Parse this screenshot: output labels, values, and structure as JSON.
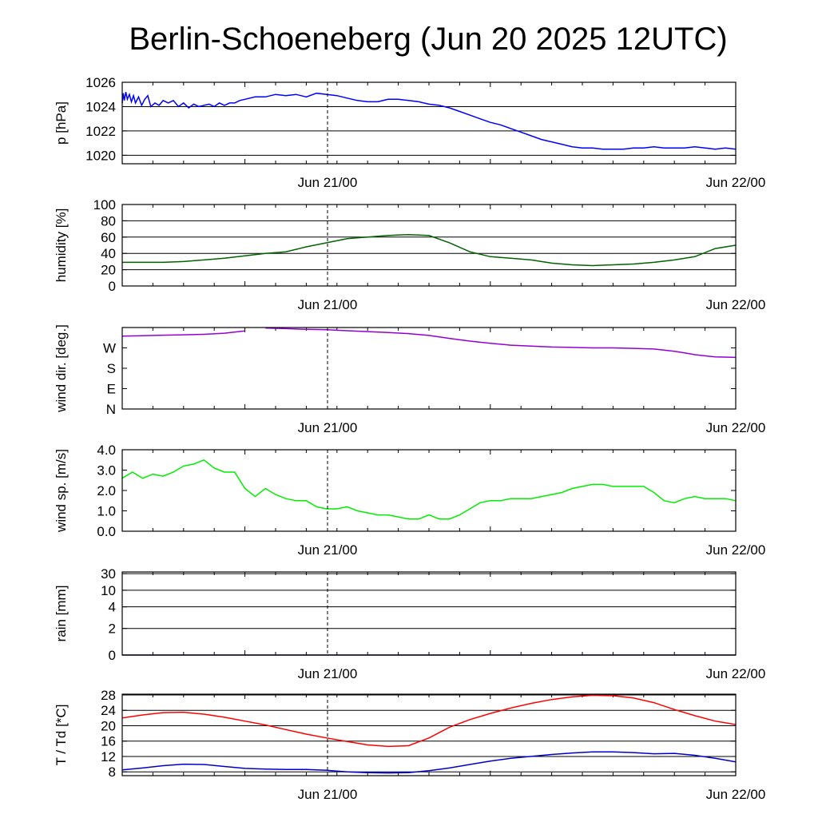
{
  "title": "Berlin-Schoeneberg (Jun 20 2025 12UTC)",
  "chart_data": [
    {
      "type": "line",
      "ylabel": "p [hPa]",
      "ylim": [
        1019.3,
        1026.0
      ],
      "yticks": [
        1020,
        1022,
        1024,
        1026
      ],
      "ytick_labels": [
        "1020",
        "1022",
        "1024",
        "1026"
      ],
      "grid": true,
      "xticks": [
        "Jun 21/00",
        "Jun 22/00"
      ],
      "series": [
        {
          "color": "#0000ff",
          "x": [
            0,
            0.1,
            0.2,
            0.35,
            0.5,
            0.7,
            0.9,
            1.1,
            1.3,
            1.6,
            1.9,
            2.2,
            2.5,
            2.8,
            3.2,
            3.6,
            4.0,
            4.5,
            5,
            5.5,
            6,
            6.5,
            7,
            7.5,
            8,
            8.5,
            9,
            9.5,
            10,
            10.5,
            11,
            11.5,
            12,
            13,
            14,
            15,
            16,
            17,
            18,
            19,
            20,
            21,
            22,
            23,
            24,
            25,
            26,
            27,
            28,
            29,
            30,
            31,
            32,
            33,
            34,
            35,
            36,
            37,
            38,
            39,
            40,
            41,
            42,
            43,
            44,
            45,
            46,
            47,
            48,
            49,
            50,
            51,
            52,
            53,
            54,
            55,
            56,
            57,
            58,
            59,
            60
          ],
          "y": [
            1024.3,
            1025.1,
            1024.5,
            1025.2,
            1024.6,
            1025.0,
            1024.4,
            1024.9,
            1024.3,
            1024.8,
            1024.1,
            1024.6,
            1024.9,
            1024.0,
            1024.3,
            1024.1,
            1024.5,
            1024.3,
            1024.5,
            1024.0,
            1024.3,
            1023.9,
            1024.2,
            1024.0,
            1024.1,
            1024.2,
            1024.0,
            1024.3,
            1024.1,
            1024.3,
            1024.3,
            1024.5,
            1024.6,
            1024.8,
            1024.8,
            1025.0,
            1024.9,
            1025.0,
            1024.8,
            1025.1,
            1025.0,
            1024.9,
            1024.7,
            1024.5,
            1024.4,
            1024.4,
            1024.6,
            1024.6,
            1024.5,
            1024.4,
            1024.2,
            1024.1,
            1023.9,
            1023.6,
            1023.3,
            1023.0,
            1022.7,
            1022.5,
            1022.2,
            1021.9,
            1021.6,
            1021.3,
            1021.1,
            1020.9,
            1020.7,
            1020.6,
            1020.6,
            1020.5,
            1020.5,
            1020.5,
            1020.6,
            1020.6,
            1020.7,
            1020.6,
            1020.6,
            1020.6,
            1020.7,
            1020.6,
            1020.5,
            1020.6,
            1020.5
          ]
        }
      ]
    },
    {
      "type": "line",
      "ylabel": "humidity [%]",
      "ylim": [
        0,
        100
      ],
      "yticks": [
        0,
        20,
        40,
        60,
        80,
        100
      ],
      "ytick_labels": [
        "0",
        "20",
        "40",
        "60",
        "80",
        "100"
      ],
      "grid": true,
      "xticks": [
        "Jun 21/00",
        "Jun 22/00"
      ],
      "series": [
        {
          "color": "#006400",
          "x": [
            0,
            2,
            4,
            6,
            8,
            10,
            12,
            14,
            16,
            18,
            20,
            22,
            24,
            26,
            28,
            30,
            32,
            34,
            36,
            38,
            40,
            42,
            44,
            46,
            48,
            50,
            52,
            54,
            56,
            58,
            60
          ],
          "y": [
            29,
            29,
            29,
            30,
            32,
            34,
            37,
            40,
            42,
            48,
            53,
            58,
            60,
            62,
            63,
            62,
            53,
            42,
            36,
            34,
            32,
            28,
            26,
            25,
            26,
            27,
            29,
            32,
            36,
            46,
            50
          ]
        }
      ]
    },
    {
      "type": "line",
      "ylabel": "wind dir. [deg.]",
      "ylim": [
        0,
        360
      ],
      "yticks": [
        0,
        90,
        180,
        270
      ],
      "ytick_labels": [
        "N",
        "E",
        "S",
        "W"
      ],
      "grid": false,
      "xticks": [
        "Jun 21/00",
        "Jun 22/00"
      ],
      "series": [
        {
          "color": "#9400d3",
          "x": [
            0,
            2,
            4,
            6,
            8,
            10,
            12,
            11.5,
            14,
            16,
            18,
            20,
            22,
            24,
            26,
            28,
            30,
            32,
            34,
            36,
            38,
            40,
            42,
            44,
            46,
            48,
            50,
            52,
            54,
            55,
            56,
            58,
            60
          ],
          "y": [
            322,
            324,
            326,
            328,
            330,
            335,
            345,
            2,
            358,
            355,
            352,
            350,
            346,
            342,
            338,
            333,
            325,
            312,
            300,
            290,
            282,
            278,
            274,
            272,
            270,
            270,
            268,
            265,
            255,
            248,
            240,
            230,
            228
          ]
        }
      ]
    },
    {
      "type": "line",
      "ylabel": "wind sp. [m/s]",
      "ylim": [
        0,
        4
      ],
      "yticks": [
        0,
        1,
        2,
        3,
        4
      ],
      "ytick_labels": [
        "0.0",
        "1.0",
        "2.0",
        "3.0",
        "4.0"
      ],
      "grid": false,
      "xticks": [
        "Jun 21/00",
        "Jun 22/00"
      ],
      "series": [
        {
          "color": "#00ee00",
          "x": [
            0,
            1,
            2,
            3,
            4,
            5,
            6,
            7,
            8,
            9,
            10,
            11,
            12,
            13,
            14,
            15,
            16,
            17,
            18,
            19,
            20,
            21,
            22,
            23,
            24,
            25,
            26,
            27,
            28,
            29,
            30,
            31,
            32,
            33,
            34,
            35,
            36,
            37,
            38,
            39,
            40,
            41,
            42,
            43,
            44,
            45,
            46,
            47,
            48,
            49,
            50,
            51,
            52,
            53,
            54,
            55,
            56,
            57,
            58,
            59,
            60
          ],
          "y": [
            2.6,
            2.9,
            2.6,
            2.8,
            2.7,
            2.9,
            3.2,
            3.3,
            3.5,
            3.1,
            2.9,
            2.9,
            2.1,
            1.7,
            2.1,
            1.8,
            1.6,
            1.5,
            1.5,
            1.2,
            1.1,
            1.1,
            1.2,
            1.0,
            0.9,
            0.8,
            0.8,
            0.7,
            0.6,
            0.6,
            0.8,
            0.6,
            0.6,
            0.8,
            1.1,
            1.4,
            1.5,
            1.5,
            1.6,
            1.6,
            1.6,
            1.7,
            1.8,
            1.9,
            2.1,
            2.2,
            2.3,
            2.3,
            2.2,
            2.2,
            2.2,
            2.2,
            1.9,
            1.5,
            1.4,
            1.6,
            1.7,
            1.6,
            1.6,
            1.6,
            1.5
          ]
        }
      ]
    },
    {
      "type": "line",
      "ylabel": "rain [mm]",
      "yticks": [
        0,
        2,
        4,
        10,
        30
      ],
      "ytick_labels": [
        "0",
        "2",
        "4",
        "10",
        "30"
      ],
      "grid": true,
      "xticks": [
        "Jun 21/00",
        "Jun 22/00"
      ],
      "series": [
        {
          "color": "#000080",
          "x": [
            0,
            60
          ],
          "y": [
            0,
            0
          ]
        }
      ]
    },
    {
      "type": "line",
      "ylabel": "T / Td [*C]",
      "ylim": [
        7,
        28.2
      ],
      "yticks": [
        8,
        12,
        16,
        20,
        24,
        28
      ],
      "ytick_labels": [
        "8",
        "12",
        "16",
        "20",
        "24",
        "28"
      ],
      "grid": true,
      "xticks": [
        "Jun 21/00",
        "Jun 22/00"
      ],
      "series": [
        {
          "color": "#ff0000",
          "x": [
            0,
            2,
            4,
            6,
            8,
            10,
            12,
            14,
            16,
            18,
            20,
            22,
            24,
            26,
            28,
            30,
            32,
            34,
            36,
            38,
            40,
            42,
            44,
            46,
            48,
            50,
            52,
            54,
            56,
            58,
            60
          ],
          "y": [
            22,
            22.8,
            23.4,
            23.5,
            23.0,
            22.2,
            21.2,
            20.2,
            19.0,
            17.8,
            16.8,
            15.9,
            15.0,
            14.6,
            14.8,
            16.8,
            19.6,
            21.6,
            23.2,
            24.6,
            25.8,
            26.8,
            27.5,
            27.9,
            27.8,
            27.2,
            26.0,
            24.2,
            22.6,
            21.2,
            20.3
          ]
        },
        {
          "color": "#0000cd",
          "x": [
            0,
            2,
            4,
            6,
            8,
            10,
            12,
            14,
            16,
            18,
            20,
            22,
            24,
            26,
            28,
            30,
            32,
            34,
            36,
            38,
            40,
            42,
            44,
            46,
            48,
            50,
            52,
            54,
            56,
            58,
            60
          ],
          "y": [
            8.5,
            9,
            9.6,
            10.0,
            9.9,
            9.4,
            8.9,
            8.7,
            8.6,
            8.6,
            8.4,
            8.0,
            7.8,
            7.7,
            7.8,
            8.3,
            9.0,
            9.9,
            10.8,
            11.5,
            12.0,
            12.5,
            12.9,
            13.2,
            13.2,
            13.0,
            12.7,
            12.8,
            12.3,
            11.5,
            10.6
          ]
        }
      ]
    }
  ]
}
